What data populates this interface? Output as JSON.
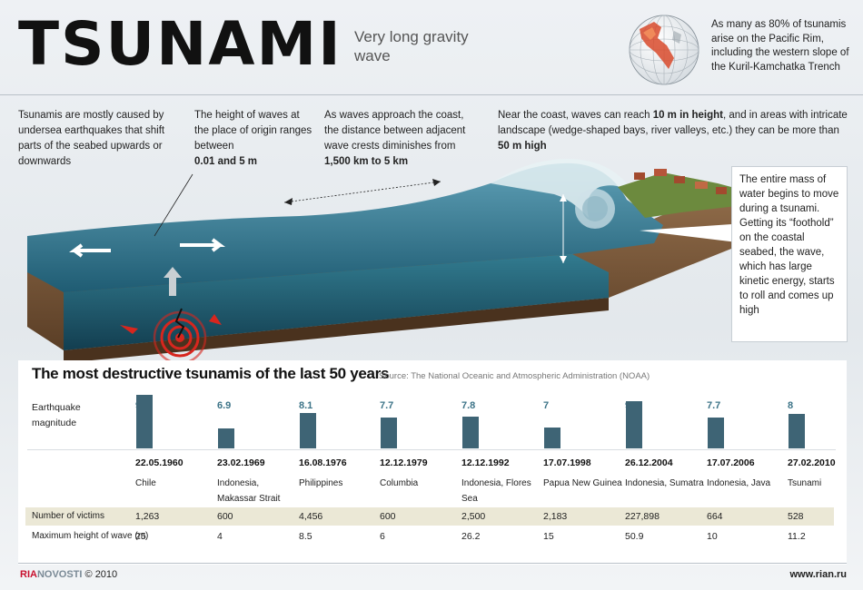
{
  "header": {
    "title": "TSUNAMI",
    "subtitle": "Very long gravity wave",
    "pacific_note": "As many as 80% of tsunamis arise on the Pacific Rim, including the western slope of the Kuril-Kamchatka Trench"
  },
  "notes": {
    "cause": "Tsunamis are mostly caused by undersea earthquakes that shift parts of the seabed upwards or downwards",
    "height_text": "The height of waves at the place of origin ranges between",
    "height_value": "0.01 and 5 m",
    "distance_text": "As waves approach the coast, the distance between adjacent wave crests diminishes from",
    "distance_value": "1,500 km to 5 km",
    "coast_text_1": "Near the coast, waves can reach",
    "coast_value_1": "10 m in height",
    "coast_text_2": ", and in areas with intricate landscape (wedge-shaped bays, river valleys, etc.) they can be more than",
    "coast_value_2": "50 m high",
    "roll": "The entire mass of water begins to move during a tsunami. Getting its “foothold” on the coastal seabed, the wave, which has large kinetic energy, starts to roll and comes up high"
  },
  "colors": {
    "accent": "#3e6475",
    "magnitude_text": "#3d7488",
    "victims_band": "#ebe8d6",
    "epicenter": "#d7261e"
  },
  "chart_data": {
    "type": "table",
    "title": "The most destructive tsunamis of the last 50 years",
    "source": "Source: The National Oceanic and Atmospheric Administration (NOAA)",
    "magnitude_label": "Earthquake magnitude",
    "victims_label": "Number of victims",
    "height_label": "Maximum height of wave (m)",
    "events": [
      {
        "magnitude": "9.5",
        "value": 9.5,
        "date": "22.05.1960",
        "place": "Chile",
        "victims": "1,263",
        "max_height": "25"
      },
      {
        "magnitude": "6.9",
        "value": 6.9,
        "date": "23.02.1969",
        "place": "Indonesia, Makassar Strait",
        "victims": "600",
        "max_height": "4"
      },
      {
        "magnitude": "8.1",
        "value": 8.1,
        "date": "16.08.1976",
        "place": "Philippines",
        "victims": "4,456",
        "max_height": "8.5"
      },
      {
        "magnitude": "7.7",
        "value": 7.7,
        "date": "12.12.1979",
        "place": "Columbia",
        "victims": "600",
        "max_height": "6"
      },
      {
        "magnitude": "7.8",
        "value": 7.8,
        "date": "12.12.1992",
        "place": "Indonesia, Flores Sea",
        "victims": "2,500",
        "max_height": "26.2"
      },
      {
        "magnitude": "7",
        "value": 7,
        "date": "17.07.1998",
        "place": "Papua New Guinea",
        "victims": "2,183",
        "max_height": "15"
      },
      {
        "magnitude": "9",
        "value": 9,
        "date": "26.12.2004",
        "place": "Indonesia, Sumatra",
        "victims": "227,898",
        "max_height": "50.9"
      },
      {
        "magnitude": "7.7",
        "value": 7.7,
        "date": "17.07.2006",
        "place": "Indonesia, Java",
        "victims": "664",
        "max_height": "10"
      },
      {
        "magnitude": "8",
        "value": 8,
        "date": "27.02.2010",
        "place": "Tsunami",
        "victims": "528",
        "max_height": "11.2"
      }
    ]
  },
  "footer": {
    "logo_ria": "RIA",
    "logo_novosti": "NOVOSTI",
    "copyright": "© 2010",
    "url": "www.rian.ru"
  }
}
